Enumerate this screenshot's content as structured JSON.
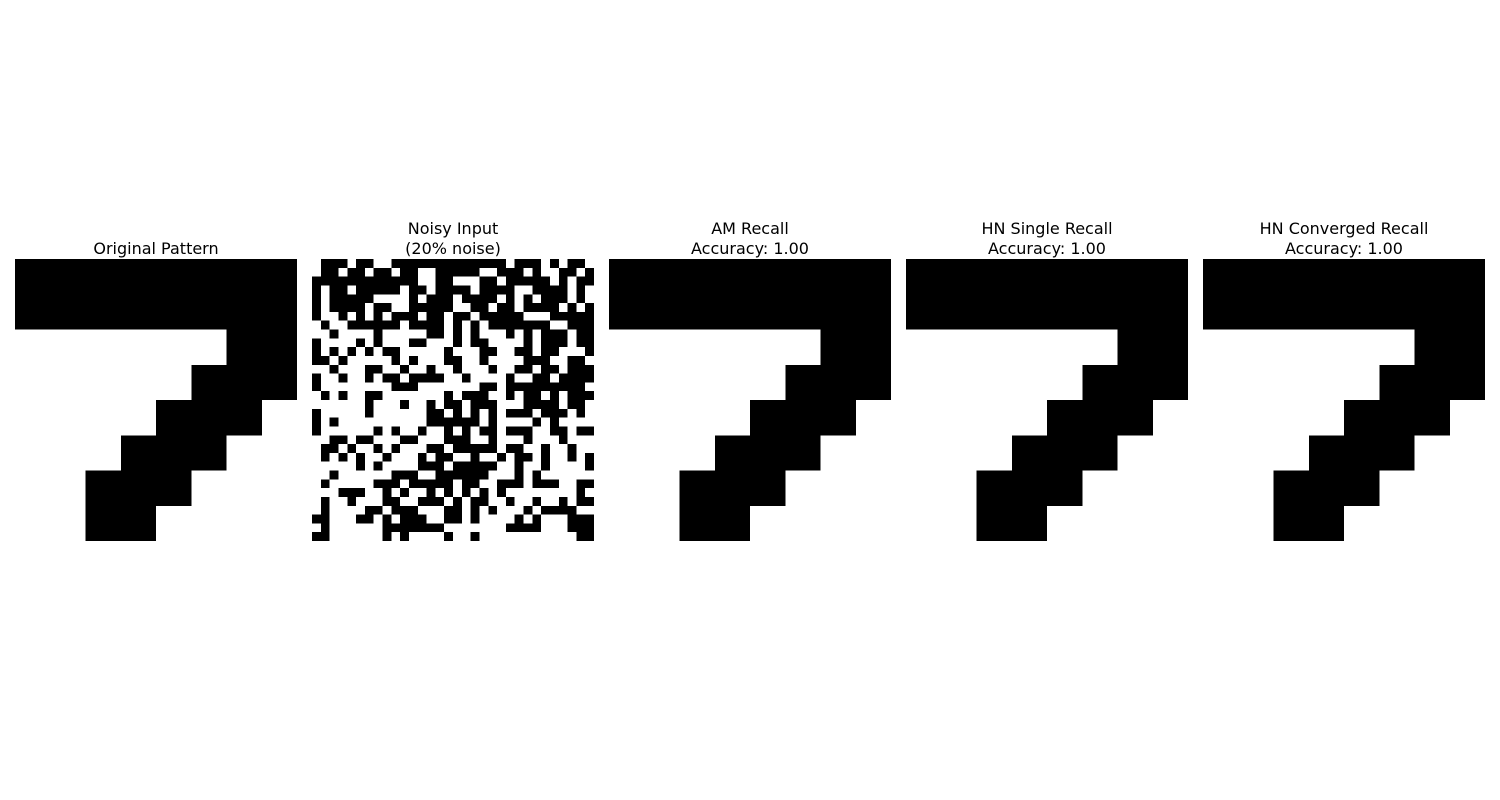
{
  "figure": {
    "panels": [
      {
        "id": "original",
        "title_lines": [
          "Original Pattern"
        ]
      },
      {
        "id": "noisy",
        "title_lines": [
          "Noisy Input",
          "(20% noise)"
        ]
      },
      {
        "id": "am",
        "title_lines": [
          "AM Recall",
          "Accuracy: 1.00"
        ]
      },
      {
        "id": "hn-single",
        "title_lines": [
          "HN Single Recall",
          "Accuracy: 1.00"
        ]
      },
      {
        "id": "hn-converged",
        "title_lines": [
          "HN Converged Recall",
          "Accuracy: 1.00"
        ]
      }
    ]
  },
  "chart_data": {
    "type": "heatmap",
    "colormap": "binary",
    "colors": {
      "on": "#000000",
      "off": "#ffffff"
    },
    "grid_cells": 32,
    "noise_level_percent": 20,
    "accuracies": {
      "am": 1.0,
      "hn_single": 1.0,
      "hn_converged": 1.0
    },
    "original_pattern": {
      "description": "digit seven",
      "block_grid": 8,
      "blocks": [
        "11111111",
        "11111111",
        "00000011",
        "00000111",
        "00001110",
        "00011100",
        "00111000",
        "00110000"
      ]
    },
    "noise_seed": 7
  }
}
